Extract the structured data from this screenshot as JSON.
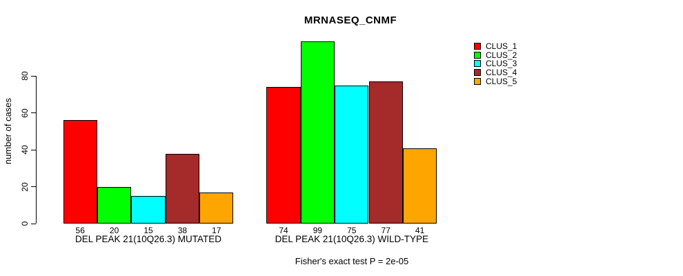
{
  "title": "MRNASEQ_CNMF",
  "footer": "Fisher's exact test P = 2e-05",
  "chart_data": {
    "type": "bar",
    "title": "MRNASEQ_CNMF",
    "xlabel": "",
    "ylabel": "number of cases",
    "ylim": [
      0,
      99
    ],
    "yticks": [
      0,
      20,
      40,
      60,
      80
    ],
    "grid": false,
    "legend_position": "right",
    "categories": [
      "DEL PEAK 21(10Q26.3) MUTATED",
      "DEL PEAK 21(10Q26.3) WILD-TYPE"
    ],
    "series": [
      {
        "name": "CLUS_1",
        "color": "#FF0000",
        "values": [
          56,
          74
        ]
      },
      {
        "name": "CLUS_2",
        "color": "#00FF00",
        "values": [
          20,
          99
        ]
      },
      {
        "name": "CLUS_3",
        "color": "#00FFFF",
        "values": [
          15,
          75
        ]
      },
      {
        "name": "CLUS_4",
        "color": "#A52A2A",
        "values": [
          38,
          77
        ]
      },
      {
        "name": "CLUS_5",
        "color": "#FFA500",
        "values": [
          17,
          41
        ]
      }
    ],
    "bar_value_labels": [
      [
        56,
        20,
        15,
        38,
        17
      ],
      [
        74,
        99,
        75,
        77,
        41
      ]
    ],
    "annotation": "Fisher's exact test P = 2e-05"
  }
}
